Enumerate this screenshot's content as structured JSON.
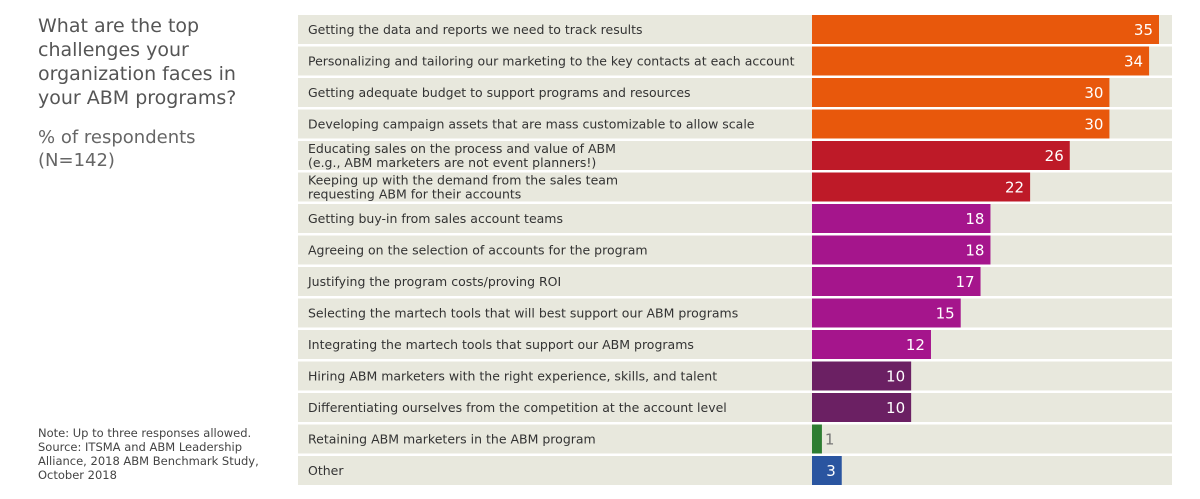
{
  "chart_data": {
    "type": "bar",
    "orientation": "horizontal",
    "title": "What are the top challenges your organization faces in your ABM programs?",
    "subtitle": [
      "% of respondents",
      "(N=142)"
    ],
    "categories": [
      [
        "Getting the data and reports we need to track results"
      ],
      [
        "Personalizing and tailoring our marketing to the key contacts at each account"
      ],
      [
        "Getting adequate budget to support programs and resources"
      ],
      [
        "Developing campaign assets that are mass customizable to allow scale"
      ],
      [
        "Educating sales on the process and value of ABM",
        "(e.g., ABM marketers are not event planners!)"
      ],
      [
        "Keeping up with the demand from the sales team",
        "requesting ABM for their accounts"
      ],
      [
        "Getting buy-in from sales account teams"
      ],
      [
        "Agreeing on the selection of accounts for the program"
      ],
      [
        "Justifying the program costs/proving ROI"
      ],
      [
        "Selecting the martech tools that will best support our ABM programs"
      ],
      [
        "Integrating the martech tools that support our ABM programs"
      ],
      [
        "Hiring ABM marketers with the right experience, skills, and talent"
      ],
      [
        "Differentiating ourselves from the competition at the account level"
      ],
      [
        "Retaining ABM marketers in the ABM program"
      ],
      [
        "Other"
      ]
    ],
    "values": [
      35,
      34,
      30,
      30,
      26,
      22,
      18,
      18,
      17,
      15,
      12,
      10,
      10,
      1,
      3
    ],
    "bar_colors": [
      "#E8580C",
      "#E8580C",
      "#E8580C",
      "#E8580C",
      "#BE1A28",
      "#BE1A28",
      "#A5158C",
      "#A5158C",
      "#A5158C",
      "#A5158C",
      "#A5158C",
      "#6B2063",
      "#6B2063",
      "#2E7D32",
      "#2A55A0"
    ],
    "label_inside": [
      true,
      true,
      true,
      true,
      true,
      true,
      true,
      true,
      true,
      true,
      true,
      true,
      true,
      false,
      true
    ],
    "xlim": [
      0,
      35
    ],
    "grid": false,
    "row_background": "#E8E8DD"
  },
  "notes": [
    "Note: Up to three responses allowed.",
    "Source: ITSMA and ABM Leadership",
    "Alliance, 2018 ABM Benchmark Study,",
    "October 2018"
  ]
}
